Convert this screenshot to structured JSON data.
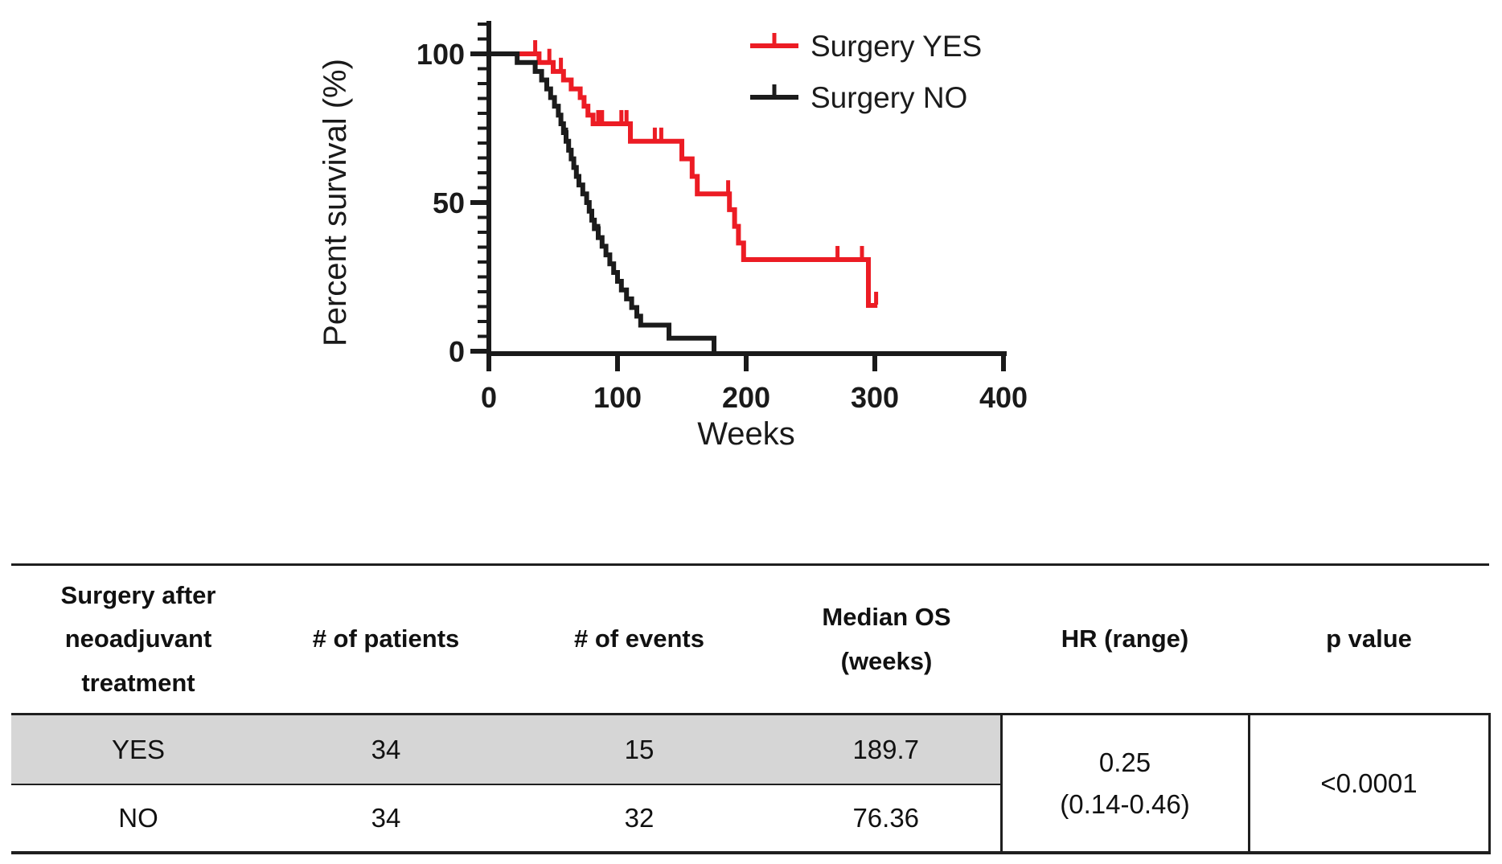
{
  "chart_data": {
    "type": "line",
    "subtype": "kaplan-meier-step",
    "title": "",
    "xlabel": "Weeks",
    "ylabel": "Percent survival (%)",
    "xlim": [
      0,
      400
    ],
    "ylim": [
      0,
      100
    ],
    "xticks": [
      0,
      100,
      200,
      300,
      400
    ],
    "yticks": [
      0,
      50,
      100
    ],
    "y_minor_tick_step": 5,
    "y_axis_top_value": 110,
    "grid": false,
    "legend_position": "top-right",
    "series": [
      {
        "name": "Surgery YES",
        "color": "#ec1c24",
        "steps": [
          [
            0,
            100
          ],
          [
            39,
            97.1
          ],
          [
            50,
            94.1
          ],
          [
            58,
            91.2
          ],
          [
            64,
            88.2
          ],
          [
            71,
            85.3
          ],
          [
            74,
            82.4
          ],
          [
            77,
            79.4
          ],
          [
            81,
            76.5
          ],
          [
            110,
            70.6
          ],
          [
            150,
            64.7
          ],
          [
            158,
            58.8
          ],
          [
            162,
            52.9
          ],
          [
            187,
            47.6
          ],
          [
            191,
            42.0
          ],
          [
            194,
            36.4
          ],
          [
            198,
            30.8
          ],
          [
            295,
            15.4
          ],
          [
            302,
            15.4
          ]
        ],
        "censor_marks": [
          [
            36,
            100
          ],
          [
            47,
            97.1
          ],
          [
            56,
            94.1
          ],
          [
            85,
            76.5
          ],
          [
            88,
            76.5
          ],
          [
            103,
            76.5
          ],
          [
            107,
            76.5
          ],
          [
            129,
            70.6
          ],
          [
            134,
            70.6
          ],
          [
            186,
            52.9
          ],
          [
            271,
            30.8
          ],
          [
            290,
            30.8
          ],
          [
            301,
            15.4
          ]
        ]
      },
      {
        "name": "Surgery NO",
        "color": "#1b1b1b",
        "steps": [
          [
            0,
            100
          ],
          [
            22,
            97.1
          ],
          [
            36,
            94.1
          ],
          [
            41,
            91.2
          ],
          [
            45,
            88.2
          ],
          [
            48,
            85.3
          ],
          [
            51,
            82.4
          ],
          [
            54,
            79.4
          ],
          [
            56,
            76.5
          ],
          [
            58,
            73.5
          ],
          [
            60,
            70.6
          ],
          [
            62,
            67.6
          ],
          [
            64,
            64.7
          ],
          [
            66,
            61.8
          ],
          [
            68,
            58.8
          ],
          [
            70,
            55.9
          ],
          [
            73,
            52.9
          ],
          [
            76,
            50.0
          ],
          [
            78,
            47.1
          ],
          [
            80,
            44.1
          ],
          [
            82,
            41.2
          ],
          [
            85,
            38.2
          ],
          [
            88,
            35.3
          ],
          [
            91,
            32.4
          ],
          [
            94,
            29.4
          ],
          [
            97,
            26.5
          ],
          [
            100,
            23.5
          ],
          [
            103,
            20.6
          ],
          [
            107,
            17.6
          ],
          [
            111,
            14.7
          ],
          [
            115,
            11.8
          ],
          [
            118,
            8.8
          ],
          [
            140,
            4.4
          ],
          [
            175,
            0
          ]
        ],
        "censor_marks": [
          [
            60,
            70.6
          ],
          [
            85,
            38.2
          ]
        ]
      }
    ]
  },
  "table": {
    "headers": [
      "Surgery after\nneoadjuvant\ntreatment",
      "# of patients",
      "# of events",
      "Median OS\n(weeks)",
      "HR (range)",
      "p value"
    ],
    "rows": [
      {
        "group": "YES",
        "patients": "34",
        "events": "15",
        "median_os": "189.7"
      },
      {
        "group": "NO",
        "patients": "34",
        "events": "32",
        "median_os": "76.36"
      }
    ],
    "hr_range": "0.25\n(0.14-0.46)",
    "p_value": "<0.0001",
    "highlight_color": "#d6d6d6"
  }
}
